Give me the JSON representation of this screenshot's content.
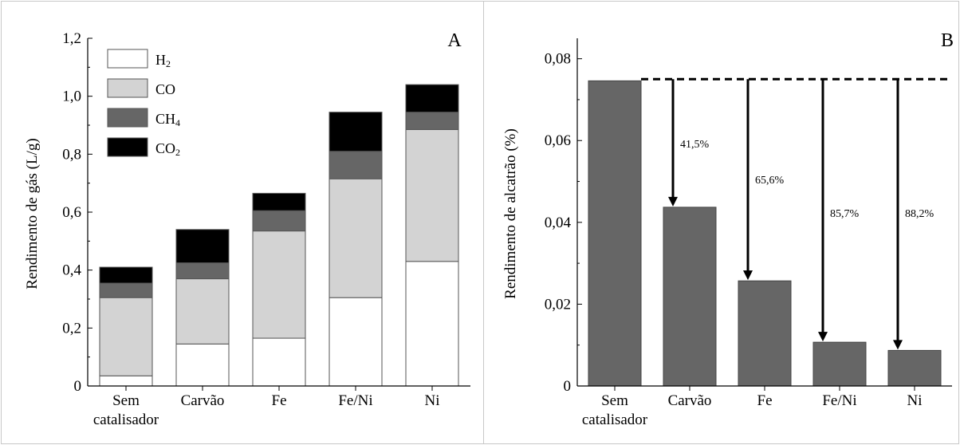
{
  "chart_data": [
    {
      "type": "bar",
      "stacked": true,
      "panel_label": "A",
      "ylabel": "Rendimento de gás (L/g)",
      "xlabel": "",
      "ylim": [
        0,
        1.2
      ],
      "yticks": [
        "0",
        "0,2",
        "0,4",
        "0,6",
        "0,8",
        "1,0",
        "1,2"
      ],
      "categories": [
        "Sem catalisador",
        "Carvão",
        "Fe",
        "Fe/Ni",
        "Ni"
      ],
      "legend_position": "top-left",
      "series": [
        {
          "name": "H2",
          "legend_text": "H",
          "legend_sub": "2",
          "color": "#ffffff",
          "values": [
            0.035,
            0.145,
            0.165,
            0.305,
            0.43
          ]
        },
        {
          "name": "CO",
          "legend_text": "CO",
          "legend_sub": "",
          "color": "#d3d3d3",
          "values": [
            0.27,
            0.225,
            0.37,
            0.41,
            0.455
          ]
        },
        {
          "name": "CH4",
          "legend_text": "CH",
          "legend_sub": "4",
          "color": "#666666",
          "values": [
            0.05,
            0.055,
            0.07,
            0.095,
            0.06
          ]
        },
        {
          "name": "CO2",
          "legend_text": "CO",
          "legend_sub": "2",
          "color": "#000000",
          "values": [
            0.055,
            0.115,
            0.06,
            0.135,
            0.095
          ]
        }
      ]
    },
    {
      "type": "bar",
      "panel_label": "B",
      "ylabel": "Rendimento de alcatrão (%)",
      "xlabel": "",
      "ylim": [
        0,
        0.085
      ],
      "yticks": [
        "0",
        "0,02",
        "0,04",
        "0,06",
        "0,08"
      ],
      "categories": [
        "Sem catalisador",
        "Carvão",
        "Fe",
        "Fe/Ni",
        "Ni"
      ],
      "values": [
        0.0746,
        0.0437,
        0.0257,
        0.0107,
        0.0087
      ],
      "bar_color": "#666666",
      "reference_line": 0.075,
      "annotations": [
        "",
        "41,5%",
        "65,6%",
        "85,7%",
        "88,2%"
      ]
    }
  ]
}
